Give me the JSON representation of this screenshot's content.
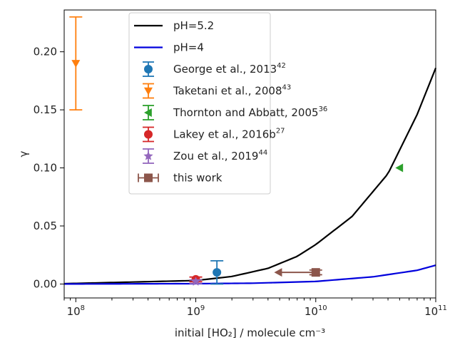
{
  "chart_data": {
    "type": "line",
    "xlabel": "initial [HO₂] / molecule cm⁻³",
    "ylabel": "γ",
    "xscale": "log",
    "xlim": [
      80000000,
      100000000000
    ],
    "ylim": [
      -0.012,
      0.236
    ],
    "x_ticks": [
      100000000,
      1000000000,
      10000000000,
      100000000000
    ],
    "x_tick_labels": [
      {
        "base": "10",
        "exp": "8"
      },
      {
        "base": "10",
        "exp": "9"
      },
      {
        "base": "10",
        "exp": "10"
      },
      {
        "base": "10",
        "exp": "11"
      }
    ],
    "y_ticks": [
      0.0,
      0.05,
      0.1,
      0.15,
      0.2
    ],
    "y_tick_labels": [
      "0.00",
      "0.05",
      "0.10",
      "0.15",
      "0.20"
    ],
    "grid": false,
    "legend_position": "top-center",
    "series": [
      {
        "name": "pH=5.2",
        "kind": "line",
        "color": "#000000",
        "x": [
          80000000,
          1000000000,
          2000000000,
          4000000000,
          7000000000,
          10000000000,
          20000000000,
          40000000000,
          70000000000,
          100000000000
        ],
        "y": [
          0.0003,
          0.003,
          0.0065,
          0.0135,
          0.0238,
          0.034,
          0.058,
          0.095,
          0.146,
          0.186
        ]
      },
      {
        "name": "pH=4",
        "kind": "line",
        "color": "#0000dd",
        "x": [
          80000000,
          1000000000,
          3000000000,
          10000000000,
          30000000000,
          70000000000,
          100000000000
        ],
        "y": [
          3e-05,
          0.0003,
          0.0007,
          0.0022,
          0.0062,
          0.0118,
          0.0162
        ]
      },
      {
        "name": "George et al., 2013",
        "sup": "42",
        "kind": "point",
        "marker": "circle",
        "color": "#1f77b4",
        "x": [
          1500000000
        ],
        "y": [
          0.01
        ],
        "yerr_low": [
          0.0
        ],
        "yerr_high": [
          0.02
        ]
      },
      {
        "name": "Taketani et al., 2008",
        "sup": "43",
        "kind": "point",
        "marker": "triangle-down",
        "color": "#ff7f0e",
        "x": [
          100000000
        ],
        "y": [
          0.19
        ],
        "yerr_low": [
          0.15
        ],
        "yerr_high": [
          0.23
        ]
      },
      {
        "name": "Thornton and Abbatt, 2005",
        "sup": "36",
        "kind": "point",
        "marker": "triangle-left",
        "color": "#2ca02c",
        "x": [
          50000000000
        ],
        "y": [
          0.1
        ]
      },
      {
        "name": "Lakey et al., 2016b",
        "sup": "27",
        "kind": "point",
        "marker": "circle",
        "color": "#d62728",
        "x": [
          1000000000
        ],
        "y": [
          0.004
        ],
        "yerr_low": [
          0.002
        ],
        "yerr_high": [
          0.006
        ]
      },
      {
        "name": "Zou et al., 2019",
        "sup": "44",
        "kind": "point",
        "marker": "star",
        "color": "#9467bd",
        "x": [
          1000000000
        ],
        "y": [
          0.002
        ],
        "yerr_low": [
          0.0005
        ],
        "yerr_high": [
          0.0035
        ]
      },
      {
        "name": "this work",
        "kind": "point",
        "marker": "square",
        "color": "#8c564b",
        "x": [
          10000000000
        ],
        "y": [
          0.01
        ],
        "yerr_low": [
          0.008
        ],
        "yerr_high": [
          0.012
        ],
        "arrow_to_x": 4500000000
      }
    ]
  }
}
